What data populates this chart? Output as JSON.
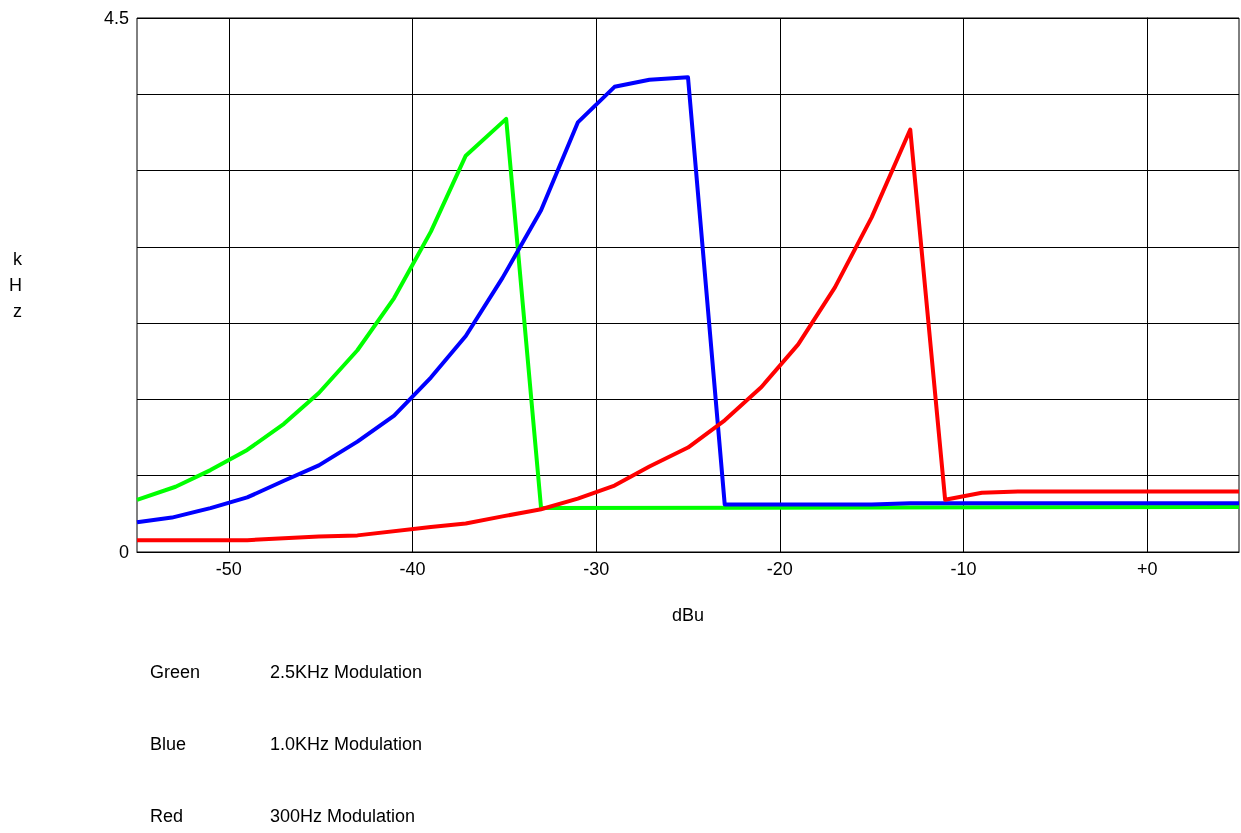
{
  "chart_data": {
    "type": "line",
    "xlabel": "dBu",
    "ylabel": "kHz",
    "xlim": [
      -55,
      5
    ],
    "ylim": [
      0,
      4.5
    ],
    "xticks": [
      {
        "value": -50,
        "label": "-50"
      },
      {
        "value": -40,
        "label": "-40"
      },
      {
        "value": -30,
        "label": "-30"
      },
      {
        "value": -20,
        "label": "-20"
      },
      {
        "value": -10,
        "label": "-10"
      },
      {
        "value": 0,
        "label": "+0"
      }
    ],
    "yticks": [
      0,
      {
        "value": 0.643,
        "label": null
      },
      {
        "value": 1.286,
        "label": null
      },
      {
        "value": 1.929,
        "label": null
      },
      {
        "value": 2.571,
        "label": null
      },
      {
        "value": 3.214,
        "label": null
      },
      {
        "value": 3.857,
        "label": null
      },
      4.5
    ],
    "grid": true,
    "marker": "none",
    "line_style": "solid",
    "series": [
      {
        "color": "#00ff00",
        "x": [
          -55,
          -52.9,
          -51,
          -49,
          -47,
          -45.1,
          -43,
          -41,
          -39,
          -37.1,
          -34.9,
          -33,
          5
        ],
        "values": [
          0.44,
          0.55,
          0.69,
          0.86,
          1.08,
          1.34,
          1.7,
          2.14,
          2.7,
          3.34,
          3.65,
          0.37,
          0.38
        ]
      },
      {
        "color": "#0000ff",
        "x": [
          -55,
          -53.1,
          -51,
          -49,
          -47,
          -45.1,
          -43,
          -41,
          -39,
          -37.1,
          -35.1,
          -33,
          -31,
          -29,
          -27.1,
          -25,
          -23,
          -15,
          -12.9,
          5
        ],
        "values": [
          0.25,
          0.29,
          0.37,
          0.46,
          0.6,
          0.73,
          0.93,
          1.15,
          1.47,
          1.82,
          2.31,
          2.88,
          3.62,
          3.92,
          3.98,
          4.0,
          0.4,
          0.4,
          0.41,
          0.41
        ]
      },
      {
        "color": "#ff0000",
        "x": [
          -55,
          -49,
          -45.1,
          -43,
          -39,
          -37.1,
          -35.1,
          -33,
          -31,
          -29,
          -27.1,
          -25,
          -23,
          -21,
          -19,
          -17,
          -15,
          -12.9,
          -11,
          -9,
          -7,
          5
        ],
        "values": [
          0.1,
          0.1,
          0.13,
          0.14,
          0.21,
          0.24,
          0.3,
          0.36,
          0.45,
          0.56,
          0.72,
          0.88,
          1.11,
          1.39,
          1.75,
          2.23,
          2.82,
          3.56,
          0.44,
          0.5,
          0.51,
          0.51
        ]
      }
    ],
    "annotations": [
      "Green",
      "2.5KHz Modulation",
      "Blue",
      "1.0KHz Modulation",
      "Red",
      "300Hz Modulation"
    ]
  }
}
